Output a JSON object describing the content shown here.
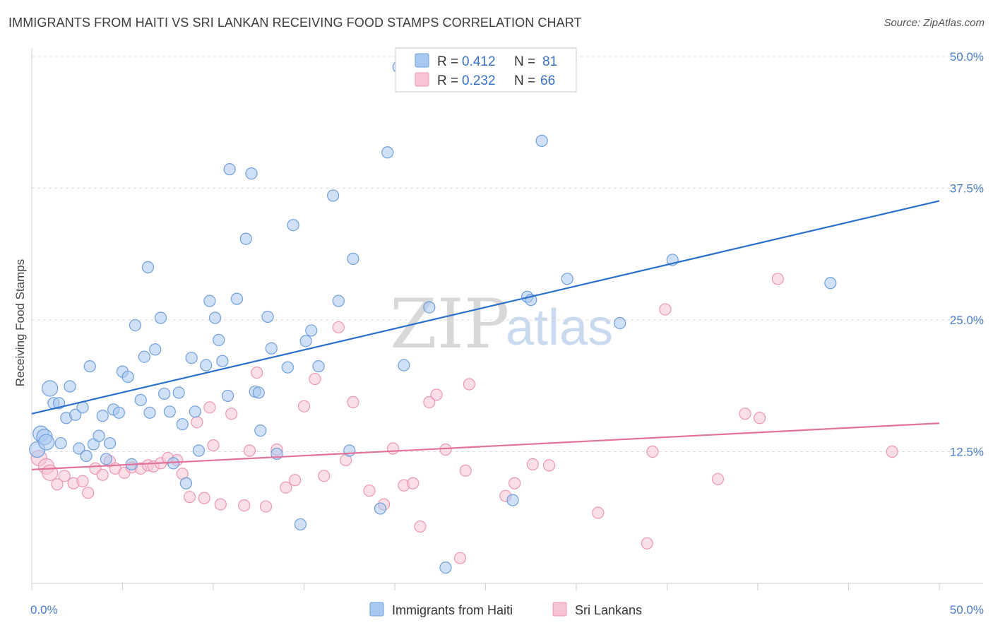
{
  "header": {
    "title": "IMMIGRANTS FROM HAITI VS SRI LANKAN RECEIVING FOOD STAMPS CORRELATION CHART",
    "source": "Source: ZipAtlas.com"
  },
  "watermark": {
    "zip": "ZIP",
    "atlas": "atlas"
  },
  "colors": {
    "haiti_fill": "#a9c8f0",
    "haiti_stroke": "#6f9fdc",
    "haiti_line": "#2a6fc9",
    "srilanka_fill": "#f7c4d4",
    "srilanka_stroke": "#ec96b2",
    "srilanka_line": "#e2729a",
    "grid": "#dedede",
    "axis_text": "#4a7fc8"
  },
  "legend": {
    "r_label": "R =",
    "n_label": "N =",
    "rows": [
      {
        "series": "haiti",
        "r": "0.412",
        "n": "81"
      },
      {
        "series": "srilanka",
        "r": "0.232",
        "n": "66"
      }
    ]
  },
  "chart_data": {
    "type": "scatter",
    "title": "IMMIGRANTS FROM HAITI VS SRI LANKAN RECEIVING FOOD STAMPS CORRELATION CHART",
    "xlabel": "",
    "ylabel": "Receiving Food Stamps",
    "xlim": [
      0,
      50
    ],
    "ylim": [
      0,
      50
    ],
    "x_tick_labels": [
      "0.0%",
      "50.0%"
    ],
    "y_tick_values": [
      12.5,
      25.0,
      37.5,
      50.0
    ],
    "y_tick_labels": [
      "12.5%",
      "25.0%",
      "37.5%",
      "50.0%"
    ],
    "grid": true,
    "legend_position": "top-center",
    "series": [
      {
        "name": "Immigrants from Haiti",
        "key": "haiti",
        "trend": {
          "x": [
            0,
            50
          ],
          "y": [
            16.1,
            36.3
          ]
        },
        "points": [
          [
            0.3,
            12.7
          ],
          [
            0.5,
            14.2
          ],
          [
            0.7,
            13.9
          ],
          [
            0.8,
            13.4
          ],
          [
            1.0,
            18.5
          ],
          [
            1.2,
            17.1
          ],
          [
            1.5,
            17.1
          ],
          [
            1.6,
            13.3
          ],
          [
            1.9,
            15.7
          ],
          [
            2.1,
            18.7
          ],
          [
            2.4,
            16.0
          ],
          [
            2.6,
            12.8
          ],
          [
            2.8,
            16.7
          ],
          [
            3.0,
            12.1
          ],
          [
            3.2,
            20.6
          ],
          [
            3.4,
            13.2
          ],
          [
            3.7,
            14.0
          ],
          [
            3.9,
            15.9
          ],
          [
            4.1,
            11.8
          ],
          [
            4.3,
            13.3
          ],
          [
            4.5,
            16.5
          ],
          [
            4.8,
            16.2
          ],
          [
            5.0,
            20.1
          ],
          [
            5.3,
            19.6
          ],
          [
            5.5,
            11.3
          ],
          [
            5.7,
            24.5
          ],
          [
            6.0,
            17.4
          ],
          [
            6.2,
            21.5
          ],
          [
            6.4,
            30.0
          ],
          [
            6.5,
            16.2
          ],
          [
            6.8,
            22.2
          ],
          [
            7.1,
            25.2
          ],
          [
            7.3,
            18.0
          ],
          [
            7.6,
            16.3
          ],
          [
            7.8,
            11.4
          ],
          [
            8.1,
            18.1
          ],
          [
            8.3,
            15.1
          ],
          [
            8.5,
            9.5
          ],
          [
            8.8,
            21.4
          ],
          [
            9.0,
            16.3
          ],
          [
            9.2,
            12.6
          ],
          [
            9.6,
            20.7
          ],
          [
            9.8,
            26.8
          ],
          [
            10.1,
            25.2
          ],
          [
            10.3,
            23.1
          ],
          [
            10.5,
            21.1
          ],
          [
            10.8,
            17.8
          ],
          [
            10.9,
            39.3
          ],
          [
            11.3,
            27.0
          ],
          [
            11.8,
            32.7
          ],
          [
            12.1,
            38.9
          ],
          [
            12.3,
            18.2
          ],
          [
            12.5,
            18.1
          ],
          [
            12.6,
            14.5
          ],
          [
            13.0,
            25.3
          ],
          [
            13.2,
            22.3
          ],
          [
            13.5,
            12.3
          ],
          [
            14.1,
            20.5
          ],
          [
            14.4,
            34.0
          ],
          [
            14.8,
            5.6
          ],
          [
            15.1,
            23.0
          ],
          [
            15.4,
            24.0
          ],
          [
            15.8,
            20.6
          ],
          [
            16.6,
            36.8
          ],
          [
            16.9,
            26.8
          ],
          [
            17.5,
            12.6
          ],
          [
            17.7,
            30.8
          ],
          [
            19.2,
            7.1
          ],
          [
            19.6,
            40.9
          ],
          [
            20.2,
            49.0
          ],
          [
            20.5,
            20.7
          ],
          [
            21.9,
            26.2
          ],
          [
            22.8,
            1.5
          ],
          [
            26.5,
            7.9
          ],
          [
            27.3,
            27.2
          ],
          [
            27.5,
            26.9
          ],
          [
            28.1,
            42.0
          ],
          [
            29.5,
            28.9
          ],
          [
            32.4,
            24.7
          ],
          [
            35.3,
            30.7
          ],
          [
            44.0,
            28.5
          ]
        ]
      },
      {
        "name": "Sri Lankans",
        "key": "srilanka",
        "trend": {
          "x": [
            0,
            50
          ],
          "y": [
            10.8,
            15.2
          ]
        },
        "points": [
          [
            0.4,
            11.9
          ],
          [
            0.8,
            11.1
          ],
          [
            1.0,
            10.5
          ],
          [
            1.4,
            9.4
          ],
          [
            1.8,
            10.2
          ],
          [
            2.3,
            9.5
          ],
          [
            2.8,
            9.7
          ],
          [
            3.1,
            8.6
          ],
          [
            3.5,
            10.9
          ],
          [
            3.9,
            10.3
          ],
          [
            4.3,
            11.6
          ],
          [
            4.6,
            10.9
          ],
          [
            5.1,
            10.5
          ],
          [
            5.5,
            11.0
          ],
          [
            6.0,
            10.9
          ],
          [
            6.4,
            11.2
          ],
          [
            6.7,
            11.1
          ],
          [
            7.1,
            11.4
          ],
          [
            7.5,
            11.9
          ],
          [
            8.0,
            11.7
          ],
          [
            8.3,
            10.4
          ],
          [
            8.7,
            8.2
          ],
          [
            9.1,
            15.3
          ],
          [
            9.5,
            8.1
          ],
          [
            9.8,
            16.7
          ],
          [
            10.0,
            13.1
          ],
          [
            10.4,
            7.5
          ],
          [
            11.0,
            16.1
          ],
          [
            11.7,
            7.4
          ],
          [
            12.0,
            12.6
          ],
          [
            12.4,
            20.0
          ],
          [
            12.9,
            7.3
          ],
          [
            13.5,
            12.7
          ],
          [
            14.0,
            9.1
          ],
          [
            14.5,
            9.8
          ],
          [
            15.0,
            16.8
          ],
          [
            15.6,
            19.4
          ],
          [
            16.1,
            10.2
          ],
          [
            16.9,
            24.3
          ],
          [
            17.3,
            11.7
          ],
          [
            17.7,
            17.2
          ],
          [
            18.6,
            8.8
          ],
          [
            19.4,
            7.5
          ],
          [
            19.9,
            12.8
          ],
          [
            20.5,
            9.3
          ],
          [
            21.0,
            9.5
          ],
          [
            21.4,
            5.4
          ],
          [
            21.9,
            17.2
          ],
          [
            22.3,
            17.9
          ],
          [
            22.8,
            12.7
          ],
          [
            23.6,
            2.4
          ],
          [
            23.9,
            10.7
          ],
          [
            24.1,
            18.9
          ],
          [
            26.1,
            8.3
          ],
          [
            26.6,
            9.5
          ],
          [
            27.6,
            11.3
          ],
          [
            28.5,
            11.2
          ],
          [
            31.2,
            6.7
          ],
          [
            33.9,
            3.8
          ],
          [
            34.2,
            12.5
          ],
          [
            34.9,
            26.0
          ],
          [
            37.8,
            9.9
          ],
          [
            39.3,
            16.1
          ],
          [
            40.1,
            15.7
          ],
          [
            41.1,
            28.9
          ],
          [
            47.4,
            12.5
          ]
        ]
      }
    ]
  },
  "bottom_legend": [
    {
      "series": "haiti",
      "label": "Immigrants from Haiti"
    },
    {
      "series": "srilanka",
      "label": "Sri Lankans"
    }
  ]
}
